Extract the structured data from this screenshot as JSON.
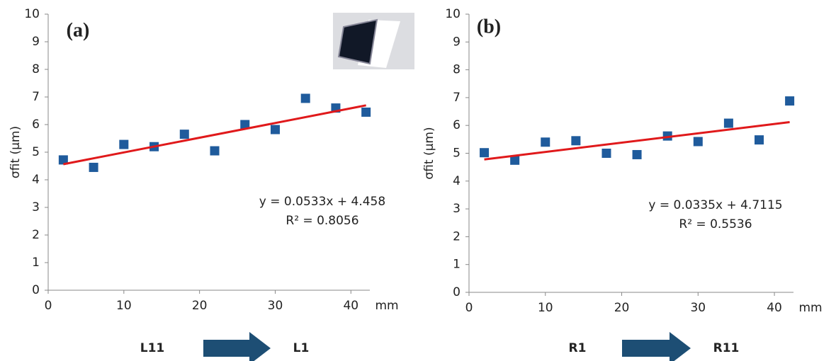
{
  "chart_data": [
    {
      "type": "scatter",
      "title": "(a)",
      "ylabel": "σfit (μm)",
      "xunit": "mm",
      "x": [
        2,
        6,
        10,
        14,
        18,
        22,
        26,
        30,
        34,
        38,
        42
      ],
      "series": [
        {
          "color": "#1f5b9c",
          "values": [
            4.72,
            4.45,
            5.28,
            5.2,
            5.65,
            5.05,
            6.0,
            5.82,
            6.95,
            6.6,
            6.45
          ]
        }
      ],
      "trendline": {
        "color": "#e0191b",
        "slope": 0.0533,
        "intercept": 4.458,
        "equation": "y = 0.0533x + 4.458",
        "r2": "R² = 0.8056"
      },
      "xlim": [
        0,
        42.5
      ],
      "xticks": [
        0,
        10,
        20,
        30,
        40
      ],
      "ylim": [
        0,
        10
      ],
      "yticks": [
        0,
        1,
        2,
        3,
        4,
        5,
        6,
        7,
        8,
        9,
        10
      ],
      "direction_from": "L11",
      "direction_to": "L1"
    },
    {
      "type": "scatter",
      "title": "(b)",
      "ylabel": "σfit (μm)",
      "xunit": "mm",
      "x": [
        2,
        6,
        10,
        14,
        18,
        22,
        26,
        30,
        34,
        38,
        42
      ],
      "series": [
        {
          "color": "#1f5b9c",
          "values": [
            5.02,
            4.75,
            5.4,
            5.45,
            5.0,
            4.95,
            5.62,
            5.42,
            6.08,
            5.48,
            6.88
          ]
        }
      ],
      "trendline": {
        "color": "#e0191b",
        "slope": 0.0335,
        "intercept": 4.7115,
        "equation": "y = 0.0335x + 4.7115",
        "r2": "R² = 0.5536"
      },
      "xlim": [
        0,
        42.5
      ],
      "xticks": [
        0,
        10,
        20,
        30,
        40
      ],
      "ylim": [
        0,
        10
      ],
      "yticks": [
        0,
        1,
        2,
        3,
        4,
        5,
        6,
        7,
        8,
        9,
        10
      ],
      "direction_from": "R1",
      "direction_to": "R11"
    }
  ]
}
